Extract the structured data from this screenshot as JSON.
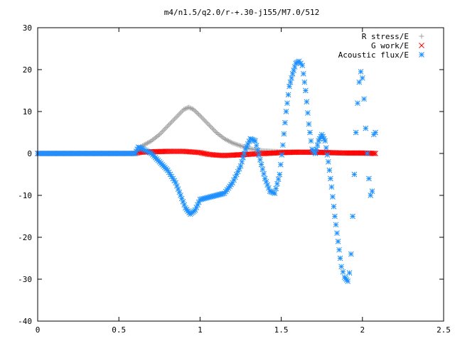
{
  "chart_data": {
    "type": "scatter",
    "title": "m4/n1.5/q2.0/r-+.30-j155/M7.0/512",
    "xlabel": "",
    "ylabel": "",
    "xlim": [
      0,
      2.5
    ],
    "ylim": [
      -40,
      30
    ],
    "x_ticks": [
      "0",
      "0.5",
      "1",
      "1.5",
      "2",
      "2.5"
    ],
    "y_ticks": [
      "30",
      "20",
      "10",
      "0",
      "-10",
      "-20",
      "-30",
      "-40"
    ],
    "grid": false,
    "legend_position": "top-right",
    "series": [
      {
        "name": "R stress/E",
        "marker": "plus",
        "color": "#a0a0a0",
        "x": [
          0.0,
          0.2,
          0.4,
          0.6,
          0.63,
          0.7,
          0.75,
          0.8,
          0.85,
          0.9,
          0.93,
          0.96,
          1.0,
          1.05,
          1.1,
          1.15,
          1.2,
          1.25,
          1.3,
          1.35,
          1.4,
          1.5,
          1.6,
          1.7,
          1.8,
          1.9,
          2.0,
          2.08
        ],
        "y": [
          0.0,
          0.0,
          0.0,
          0.0,
          1.5,
          3.0,
          4.5,
          6.5,
          8.5,
          10.5,
          11.0,
          10.5,
          9.0,
          7.0,
          5.0,
          3.5,
          2.5,
          1.8,
          1.2,
          0.8,
          0.6,
          0.4,
          0.3,
          0.2,
          0.1,
          0.1,
          0.1,
          0.0
        ]
      },
      {
        "name": "G work/E",
        "marker": "cross",
        "color": "#ff0000",
        "x": [
          0.0,
          0.6,
          0.63,
          0.7,
          0.8,
          0.9,
          1.0,
          1.05,
          1.1,
          1.15,
          1.2,
          1.3,
          1.4,
          1.5,
          1.6,
          1.7,
          1.8,
          1.9,
          2.0,
          2.08
        ],
        "y": [
          0.0,
          0.0,
          0.3,
          0.4,
          0.5,
          0.5,
          0.2,
          -0.2,
          -0.4,
          -0.5,
          -0.4,
          -0.2,
          0.0,
          0.2,
          0.3,
          0.3,
          0.2,
          0.1,
          0.1,
          0.0
        ]
      },
      {
        "name": "Acoustic flux/E",
        "marker": "star",
        "color": "#1e90ff",
        "x": [
          0.0,
          0.2,
          0.4,
          0.6,
          0.62,
          0.65,
          0.7,
          0.75,
          0.8,
          0.85,
          0.88,
          0.91,
          0.94,
          0.97,
          1.0,
          1.05,
          1.1,
          1.15,
          1.2,
          1.25,
          1.28,
          1.31,
          1.34,
          1.37,
          1.4,
          1.43,
          1.46,
          1.49,
          1.51,
          1.53,
          1.55,
          1.57,
          1.59,
          1.61,
          1.63,
          1.65,
          1.67,
          1.69,
          1.71,
          1.73,
          1.75,
          1.77,
          1.79,
          1.81,
          1.83,
          1.85,
          1.87,
          1.89,
          1.91,
          1.92,
          1.93,
          1.94,
          1.95,
          1.96,
          1.97,
          1.98,
          1.99,
          2.0,
          2.01,
          2.02,
          2.03,
          2.04,
          2.05,
          2.06,
          2.07,
          2.08
        ],
        "y": [
          0.0,
          0.0,
          0.0,
          0.0,
          1.5,
          1.0,
          0.0,
          -2.0,
          -4.0,
          -7.0,
          -10.0,
          -13.0,
          -14.5,
          -13.5,
          -11.0,
          -10.5,
          -10.0,
          -9.5,
          -7.0,
          -3.0,
          1.0,
          3.5,
          3.0,
          -1.5,
          -6.0,
          -9.0,
          -9.5,
          -5.0,
          2.0,
          10.0,
          16.0,
          19.0,
          21.5,
          22.0,
          21.0,
          15.0,
          7.0,
          1.0,
          0.0,
          3.0,
          4.5,
          3.0,
          -2.0,
          -8.0,
          -15.0,
          -21.0,
          -27.0,
          -29.5,
          -30.5,
          -28.5,
          -24.0,
          -15.0,
          -5.0,
          5.0,
          12.0,
          17.0,
          19.5,
          18.0,
          13.0,
          6.0,
          0.0,
          -6.0,
          -10.0,
          -9.0,
          4.5,
          5.0
        ]
      }
    ]
  }
}
